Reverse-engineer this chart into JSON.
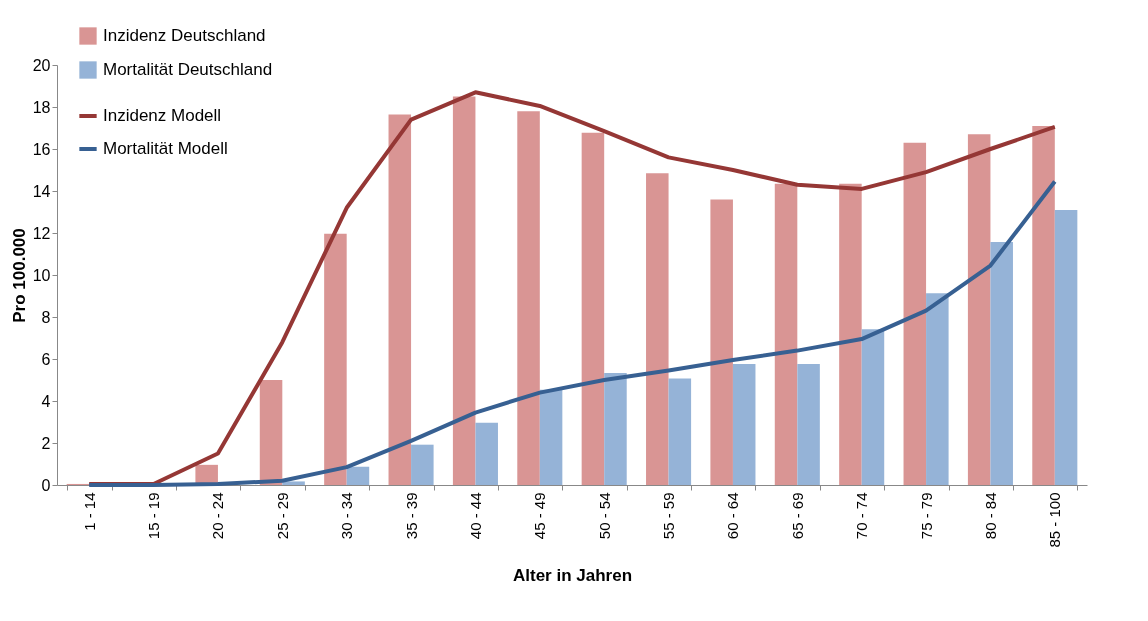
{
  "chart_data": {
    "type": "bar",
    "xlabel": "Alter in Jahren",
    "ylabel": "Pro 100.000",
    "categories": [
      "1 - 14",
      "15 - 19",
      "20 - 24",
      "25 - 29",
      "30 - 34",
      "35 - 39",
      "40 - 44",
      "45 - 49",
      "50 - 54",
      "55 - 59",
      "60 - 64",
      "65 - 69",
      "70 - 74",
      "75 - 79",
      "80 - 84",
      "85 - 100"
    ],
    "series": [
      {
        "name": "Inzidenz Deutschland",
        "color": "#d99594",
        "type": "bar",
        "values": [
          0.05,
          null,
          0.96,
          5.0,
          11.96,
          17.64,
          18.5,
          17.8,
          16.77,
          14.85,
          13.6,
          14.35,
          14.35,
          16.3,
          16.7,
          17.1
        ]
      },
      {
        "name": "Mortalität Deutschland",
        "color": "#95b3d7",
        "type": "bar",
        "values": [
          null,
          0.05,
          null,
          0.17,
          0.87,
          1.92,
          2.97,
          4.54,
          5.33,
          5.07,
          5.76,
          5.76,
          7.42,
          9.13,
          11.57,
          13.1
        ]
      },
      {
        "name": "Inzidenz Modell",
        "color": "#953735",
        "type": "line",
        "values": [
          0.05,
          0.05,
          1.5,
          6.8,
          13.2,
          17.4,
          18.7,
          18.05,
          16.85,
          15.6,
          15.0,
          14.3,
          14.1,
          14.9,
          16.0,
          17.05
        ]
      },
      {
        "name": "Mortalität Modell",
        "color": "#376092",
        "type": "line",
        "values": [
          0.0,
          0.0,
          0.05,
          0.2,
          0.85,
          2.1,
          3.45,
          4.4,
          5.0,
          5.45,
          5.95,
          6.4,
          6.95,
          8.3,
          10.45,
          14.45
        ]
      }
    ],
    "ylim": [
      0,
      20
    ],
    "yticks": [
      0,
      2,
      4,
      6,
      8,
      10,
      12,
      14,
      16,
      18,
      20
    ],
    "grid": false,
    "legend": "top left",
    "marker": "none",
    "line_style": "solid"
  }
}
